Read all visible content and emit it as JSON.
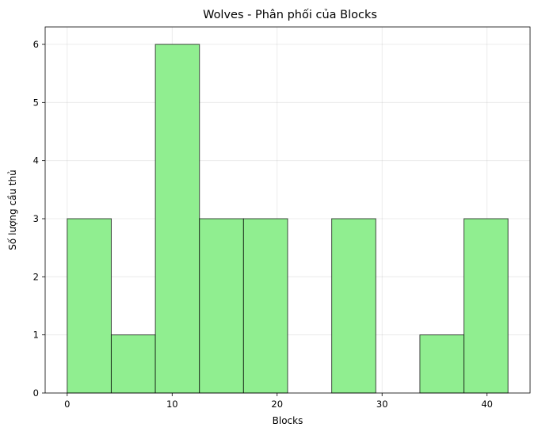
{
  "chart_data": {
    "type": "bar",
    "title": "Wolves - Phân phối của Blocks",
    "xlabel": "Blocks",
    "ylabel": "Số lượng cầu thủ",
    "bin_edges": [
      0,
      4.2,
      8.4,
      12.6,
      16.8,
      21.0,
      25.2,
      29.4,
      33.6,
      37.8,
      42.0
    ],
    "counts": [
      3,
      1,
      6,
      3,
      3,
      0,
      3,
      0,
      1,
      3
    ],
    "xlim": [
      -2.1,
      44.1
    ],
    "ylim": [
      0,
      6.3
    ],
    "xticks": [
      0,
      10,
      20,
      30,
      40
    ],
    "yticks": [
      0,
      1,
      2,
      3,
      4,
      5,
      6
    ],
    "grid": true,
    "colors": {
      "bar_fill": "#90EE90",
      "bar_edge": "#000000"
    }
  }
}
